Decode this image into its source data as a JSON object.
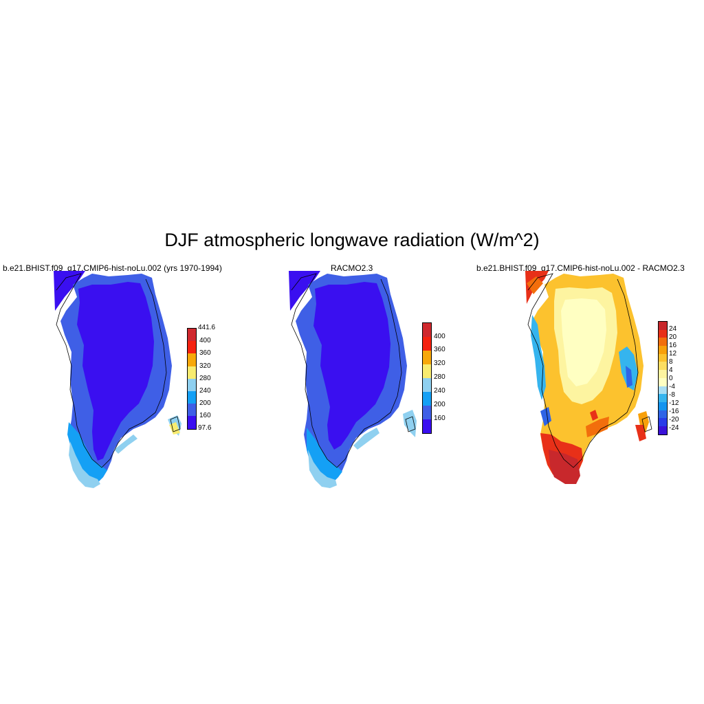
{
  "title": "DJF atmospheric longwave radiation (W/m^2)",
  "palettes": {
    "abs": [
      "#3a0ff0",
      "#3f5fe6",
      "#14a0f5",
      "#8fd0f0",
      "#f8ec70",
      "#f7a80a",
      "#f52210",
      "#d0282e"
    ],
    "diff": [
      "#3a12d8",
      "#2a3ce8",
      "#2f64e6",
      "#1494ef",
      "#35b4ee",
      "#a8ddf3",
      "#ffffc2",
      "#fdf4a0",
      "#fcde62",
      "#fcc22e",
      "#f8a00a",
      "#f26e0c",
      "#e83018",
      "#c8282c"
    ]
  },
  "panels": [
    {
      "title": "b.e21.BHIST.f09_g17.CMIP6-hist-noLu.002 (yrs 1970-1994)",
      "colorbar": {
        "labels": [
          "441.6",
          "400",
          "360",
          "320",
          "280",
          "240",
          "200",
          "160",
          "97.6"
        ]
      }
    },
    {
      "title": "RACMO2.3",
      "colorbar": {
        "labels": [
          "400",
          "360",
          "320",
          "280",
          "240",
          "200",
          "160"
        ]
      }
    },
    {
      "title": "b.e21.BHIST.f09_g17.CMIP6-hist-noLu.002 - RACMO2.3",
      "colorbar": {
        "labels": [
          "24",
          "20",
          "16",
          "12",
          "8",
          "4",
          "0",
          "-4",
          "-8",
          "-12",
          "-16",
          "-20",
          "-24"
        ]
      }
    }
  ]
}
